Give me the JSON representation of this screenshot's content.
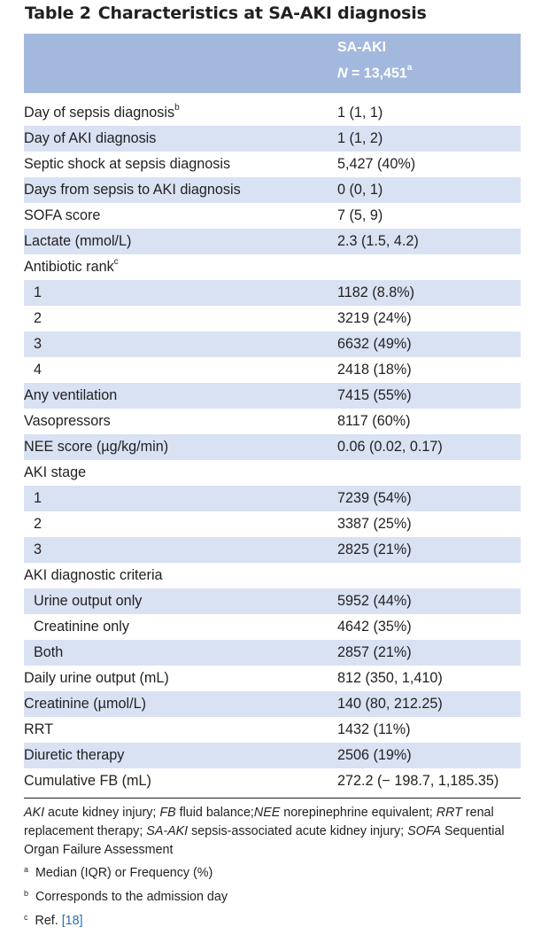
{
  "table": {
    "number": "Table 2",
    "title": "Characteristics at SA-AKI diagnosis",
    "column_header": {
      "line1": "SA-AKI",
      "n_label": "N",
      "n_eq": " = 13,451",
      "n_mark": "a"
    },
    "rows": [
      {
        "label": "Day of sepsis diagnosis",
        "mark": "b",
        "value": "1 (1, 1)",
        "shaded": false,
        "indent": false
      },
      {
        "label": "Day of AKI diagnosis",
        "mark": "",
        "value": "1 (1, 2)",
        "shaded": true,
        "indent": false
      },
      {
        "label": "Septic shock at sepsis diagnosis",
        "mark": "",
        "value": "5,427 (40%)",
        "shaded": false,
        "indent": false
      },
      {
        "label": "Days from sepsis to AKI diagnosis",
        "mark": "",
        "value": "0 (0, 1)",
        "shaded": true,
        "indent": false
      },
      {
        "label": "SOFA score",
        "mark": "",
        "value": "7 (5, 9)",
        "shaded": false,
        "indent": false
      },
      {
        "label": "Lactate (mmol/L)",
        "mark": "",
        "value": "2.3 (1.5, 4.2)",
        "shaded": true,
        "indent": false
      },
      {
        "label": "Antibiotic rank",
        "mark": "c",
        "value": "",
        "shaded": false,
        "indent": false
      },
      {
        "label": "1",
        "mark": "",
        "value": "1182 (8.8%)",
        "shaded": true,
        "indent": true
      },
      {
        "label": "2",
        "mark": "",
        "value": "3219 (24%)",
        "shaded": false,
        "indent": true
      },
      {
        "label": "3",
        "mark": "",
        "value": "6632 (49%)",
        "shaded": true,
        "indent": true
      },
      {
        "label": "4",
        "mark": "",
        "value": "2418 (18%)",
        "shaded": false,
        "indent": true
      },
      {
        "label": "Any ventilation",
        "mark": "",
        "value": "7415 (55%)",
        "shaded": true,
        "indent": false
      },
      {
        "label": "Vasopressors",
        "mark": "",
        "value": "8117 (60%)",
        "shaded": false,
        "indent": false
      },
      {
        "label": "NEE score (µg/kg/min)",
        "mark": "",
        "value": "0.06 (0.02, 0.17)",
        "shaded": true,
        "indent": false
      },
      {
        "label": "AKI stage",
        "mark": "",
        "value": "",
        "shaded": false,
        "indent": false
      },
      {
        "label": "1",
        "mark": "",
        "value": "7239 (54%)",
        "shaded": true,
        "indent": true
      },
      {
        "label": "2",
        "mark": "",
        "value": "3387 (25%)",
        "shaded": false,
        "indent": true
      },
      {
        "label": "3",
        "mark": "",
        "value": "2825 (21%)",
        "shaded": true,
        "indent": true
      },
      {
        "label": "AKI diagnostic criteria",
        "mark": "",
        "value": "",
        "shaded": false,
        "indent": false
      },
      {
        "label": "Urine output only",
        "mark": "",
        "value": "5952 (44%)",
        "shaded": true,
        "indent": true
      },
      {
        "label": "Creatinine only",
        "mark": "",
        "value": "4642 (35%)",
        "shaded": false,
        "indent": true
      },
      {
        "label": "Both",
        "mark": "",
        "value": "2857 (21%)",
        "shaded": true,
        "indent": true
      },
      {
        "label": "Daily urine output (mL)",
        "mark": "",
        "value": "812 (350, 1,410)",
        "shaded": false,
        "indent": false
      },
      {
        "label": "Creatinine (µmol/L)",
        "mark": "",
        "value": "140 (80, 212.25)",
        "shaded": true,
        "indent": false
      },
      {
        "label": "RRT",
        "mark": "",
        "value": "1432 (11%)",
        "shaded": false,
        "indent": false
      },
      {
        "label": "Diuretic therapy",
        "mark": "",
        "value": "2506 (19%)",
        "shaded": true,
        "indent": false
      },
      {
        "label": "Cumulative FB (mL)",
        "mark": "",
        "value": "272.2 (− 198.7, 1,185.35)",
        "shaded": false,
        "indent": false
      }
    ],
    "abbreviations": [
      {
        "abbr": "AKI",
        "text": " acute kidney injury; "
      },
      {
        "abbr": "FB",
        "text": " fluid balance;"
      },
      {
        "abbr": "NEE",
        "text": " norepinephrine equivalent; "
      },
      {
        "abbr": "RRT",
        "text": " renal replacement therapy; "
      },
      {
        "abbr": "SA-AKI",
        "text": " sepsis-associated acute kidney injury; "
      },
      {
        "abbr": "SOFA",
        "text": " Sequential Organ Failure Assessment"
      }
    ],
    "footnotes": [
      {
        "mark": "a",
        "text": "Median (IQR) or Frequency (%)",
        "link": ""
      },
      {
        "mark": "b",
        "text": "Corresponds to the  admission day",
        "link": ""
      },
      {
        "mark": "c",
        "text": "Ref. ",
        "link": "[18]"
      }
    ]
  }
}
